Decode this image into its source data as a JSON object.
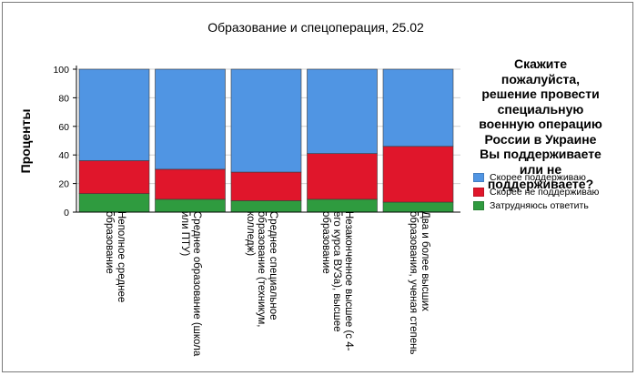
{
  "chart_data": {
    "type": "bar",
    "stacked": true,
    "title": "Образование и спецоперация, 25.02",
    "xlabel": "",
    "ylabel": "Проценты",
    "ylim": [
      0,
      100
    ],
    "yticks": [
      0,
      20,
      40,
      60,
      80,
      100
    ],
    "grid": true,
    "legend_position": "right",
    "legend_title": "Скажите пожалуйста, решение провести специальную военную операцию России в Украине Вы поддерживаете или не поддерживаете?",
    "categories": [
      "Неполное среднее образование",
      "Среднее образование (школа или ПТУ)",
      "Среднее специальное образование (техникум, колледж)",
      "Незаконченное высшее (с 4-его курса ВУЗа), высшее образование",
      "Два и более высших образования, ученая степень"
    ],
    "series": [
      {
        "name": "Затрудняюсь ответить",
        "color": "#2f9b3f",
        "values": [
          13,
          9,
          8,
          9,
          7
        ]
      },
      {
        "name": "Скорее не поддерживаю",
        "color": "#e0162b",
        "values": [
          23,
          21,
          20,
          32,
          39
        ]
      },
      {
        "name": "Скорее поддерживаю",
        "color": "#5095e3",
        "values": [
          64,
          70,
          72,
          59,
          54
        ]
      }
    ],
    "legend_order": [
      "Скорее поддерживаю",
      "Скорее не поддерживаю",
      "Затрудняюсь ответить"
    ]
  }
}
